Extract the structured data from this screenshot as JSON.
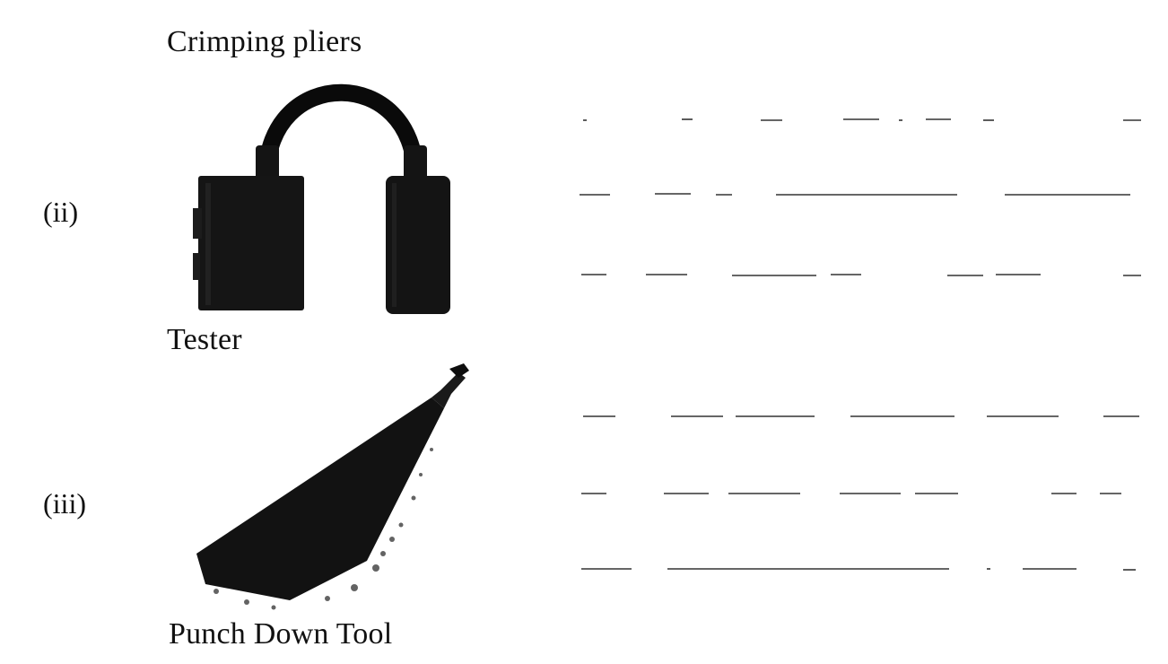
{
  "questions": [
    {
      "number": "(ii)",
      "caption_above": "Crimping pliers",
      "caption_below": "Tester",
      "answer_line_count": 3
    },
    {
      "number": "(iii)",
      "caption_below": "Punch Down Tool",
      "answer_line_count": 3
    }
  ],
  "colors": {
    "ink": "#111111",
    "line": "#333333",
    "paper": "#ffffff"
  },
  "icons": {
    "tester": "cable-tester-icon",
    "punch_down_tool": "punch-down-tool-icon"
  }
}
